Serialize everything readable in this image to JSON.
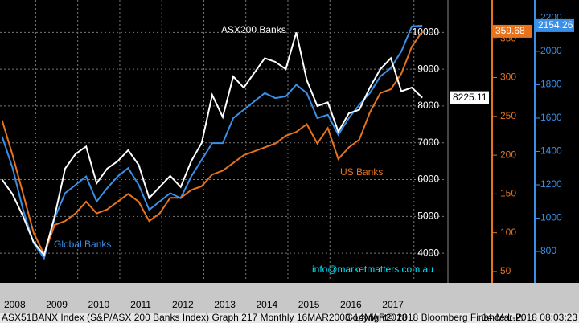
{
  "chart_data": {
    "type": "line",
    "annotations": [
      "ASX200 Banks",
      "US Banks",
      "Global Banks",
      "info@marketmatters.com.au"
    ],
    "footer": [
      "ASX51BANX Index (S&P/ASX 200 Banks Index) Graph 217  Monthly 16MAR2008-14MAR2018",
      "Copyright© 2018 Bloomberg Finance L.P.",
      "14-Mar-2018 08:03:23"
    ],
    "x": [
      2008.2,
      2008.45,
      2008.7,
      2008.95,
      2009.2,
      2009.45,
      2009.7,
      2009.95,
      2010.2,
      2010.45,
      2010.7,
      2010.95,
      2011.2,
      2011.45,
      2011.7,
      2011.95,
      2012.2,
      2012.45,
      2012.7,
      2012.95,
      2013.2,
      2013.45,
      2013.7,
      2013.95,
      2014.2,
      2014.45,
      2014.7,
      2014.95,
      2015.2,
      2015.45,
      2015.7,
      2015.95,
      2016.2,
      2016.45,
      2016.7,
      2016.95,
      2017.2,
      2017.45,
      2017.7,
      2017.95,
      2018.2
    ],
    "series": [
      {
        "name": "ASX200 Banks",
        "color": "#ffffff",
        "axis": "y",
        "values": [
          6000,
          5600,
          5000,
          4300,
          3950,
          5000,
          6300,
          6700,
          6900,
          5900,
          6300,
          6500,
          6800,
          6400,
          5500,
          5800,
          6100,
          5800,
          6500,
          7000,
          8300,
          7700,
          8800,
          8500,
          8900,
          9300,
          9200,
          9000,
          10000,
          8700,
          8000,
          8100,
          7300,
          7800,
          7900,
          8500,
          9000,
          9300,
          8400,
          8500,
          8225.11
        ]
      },
      {
        "name": "US Banks",
        "color": "#e8731d",
        "axis": "y2",
        "values": [
          245,
          200,
          150,
          100,
          72,
          110,
          115,
          125,
          140,
          125,
          130,
          140,
          150,
          140,
          115,
          125,
          145,
          145,
          155,
          160,
          175,
          180,
          190,
          200,
          205,
          210,
          215,
          225,
          230,
          240,
          215,
          235,
          195,
          210,
          220,
          255,
          280,
          285,
          305,
          340,
          359.68
        ]
      },
      {
        "name": "Global Banks",
        "color": "#3a8fe8",
        "axis": "y3",
        "values": [
          1490,
          1300,
          1050,
          850,
          760,
          1000,
          1150,
          1200,
          1250,
          1100,
          1180,
          1250,
          1300,
          1200,
          1050,
          1100,
          1150,
          1120,
          1250,
          1350,
          1450,
          1450,
          1600,
          1650,
          1700,
          1750,
          1720,
          1730,
          1800,
          1750,
          1600,
          1620,
          1500,
          1600,
          1680,
          1750,
          1850,
          1900,
          2000,
          2150,
          2154.26
        ]
      }
    ],
    "xlim": [
      2008.15,
      2018.77
    ],
    "xticks": [
      {
        "value": 2008.5,
        "label": "2008"
      },
      {
        "value": 2009.5,
        "label": "2009"
      },
      {
        "value": 2010.5,
        "label": "2010"
      },
      {
        "value": 2011.5,
        "label": "2011"
      },
      {
        "value": 2012.5,
        "label": "2012"
      },
      {
        "value": 2013.5,
        "label": "2013"
      },
      {
        "value": 2014.5,
        "label": "2014"
      },
      {
        "value": 2015.5,
        "label": "2015"
      },
      {
        "value": 2016.5,
        "label": "2016"
      },
      {
        "value": 2017.5,
        "label": "2017"
      }
    ],
    "x_gridlines": [
      2009,
      2010,
      2011,
      2012,
      2013,
      2014,
      2015,
      2016,
      2017,
      2018
    ],
    "ylim": [
      3240,
      10880
    ],
    "yticks": [
      4000,
      5000,
      6000,
      7000,
      8000,
      9000,
      10000
    ],
    "y2lim": [
      37.5,
      400
    ],
    "y2ticks": [
      50,
      100,
      150,
      200,
      250,
      300,
      350
    ],
    "y3lim": [
      622,
      2308
    ],
    "y3ticks": [
      800,
      1000,
      1200,
      1400,
      1600,
      1800,
      2000,
      2200
    ],
    "grid": true
  }
}
